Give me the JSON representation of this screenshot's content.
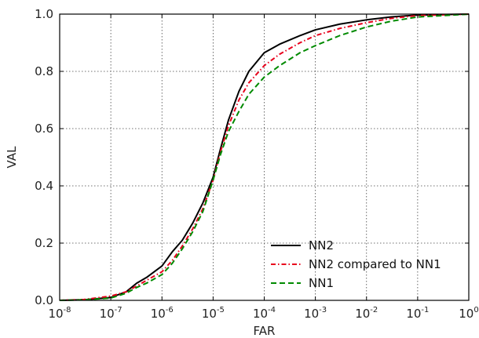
{
  "chart_data": {
    "type": "line",
    "xlabel": "FAR",
    "ylabel": "VAL",
    "xscale": "log",
    "xlim": [
      1e-08,
      1
    ],
    "ylim": [
      0,
      1.0
    ],
    "grid": true,
    "legend_position": "bottom-right",
    "x_ticks": [
      {
        "base": "10",
        "exp": "-8",
        "value": 1e-08
      },
      {
        "base": "10",
        "exp": "-7",
        "value": 1e-07
      },
      {
        "base": "10",
        "exp": "-6",
        "value": 1e-06
      },
      {
        "base": "10",
        "exp": "-5",
        "value": 1e-05
      },
      {
        "base": "10",
        "exp": "-4",
        "value": 0.0001
      },
      {
        "base": "10",
        "exp": "-3",
        "value": 0.001
      },
      {
        "base": "10",
        "exp": "-2",
        "value": 0.01
      },
      {
        "base": "10",
        "exp": "-1",
        "value": 0.1
      },
      {
        "base": "10",
        "exp": "0",
        "value": 1
      }
    ],
    "y_ticks": [
      {
        "label": "0.0",
        "value": 0.0
      },
      {
        "label": "0.2",
        "value": 0.2
      },
      {
        "label": "0.4",
        "value": 0.4
      },
      {
        "label": "0.6",
        "value": 0.6
      },
      {
        "label": "0.8",
        "value": 0.8
      },
      {
        "label": "1.0",
        "value": 1.0
      }
    ],
    "series": [
      {
        "name": "NN2",
        "color": "#000000",
        "style": "solid",
        "points": [
          [
            1e-08,
            0.0
          ],
          [
            3e-08,
            0.002
          ],
          [
            1e-07,
            0.01
          ],
          [
            2e-07,
            0.03
          ],
          [
            3.2e-07,
            0.06
          ],
          [
            5e-07,
            0.08
          ],
          [
            1e-06,
            0.12
          ],
          [
            1.6e-06,
            0.17
          ],
          [
            2.5e-06,
            0.21
          ],
          [
            4e-06,
            0.27
          ],
          [
            6.3e-06,
            0.34
          ],
          [
            1e-05,
            0.43
          ],
          [
            1.4e-05,
            0.53
          ],
          [
            2e-05,
            0.63
          ],
          [
            3.2e-05,
            0.73
          ],
          [
            5e-05,
            0.8
          ],
          [
            0.0001,
            0.865
          ],
          [
            0.0002,
            0.895
          ],
          [
            0.0005,
            0.925
          ],
          [
            0.001,
            0.945
          ],
          [
            0.003,
            0.965
          ],
          [
            0.01,
            0.98
          ],
          [
            0.03,
            0.99
          ],
          [
            0.1,
            0.997
          ],
          [
            1,
            1.0
          ]
        ]
      },
      {
        "name": "NN2 compared to NN1",
        "color": "#e8001c",
        "style": "dashdot",
        "points": [
          [
            1e-08,
            0.0
          ],
          [
            3e-08,
            0.003
          ],
          [
            1e-07,
            0.015
          ],
          [
            2e-07,
            0.03
          ],
          [
            3.2e-07,
            0.05
          ],
          [
            5e-07,
            0.07
          ],
          [
            1e-06,
            0.1
          ],
          [
            1.6e-06,
            0.14
          ],
          [
            2.5e-06,
            0.19
          ],
          [
            4e-06,
            0.25
          ],
          [
            6.3e-06,
            0.32
          ],
          [
            1e-05,
            0.42
          ],
          [
            1.4e-05,
            0.52
          ],
          [
            2e-05,
            0.61
          ],
          [
            3.2e-05,
            0.7
          ],
          [
            5e-05,
            0.76
          ],
          [
            0.0001,
            0.82
          ],
          [
            0.0002,
            0.86
          ],
          [
            0.0005,
            0.9
          ],
          [
            0.001,
            0.925
          ],
          [
            0.003,
            0.95
          ],
          [
            0.01,
            0.97
          ],
          [
            0.03,
            0.985
          ],
          [
            0.1,
            0.995
          ],
          [
            1,
            1.0
          ]
        ]
      },
      {
        "name": "NN1",
        "color": "#008a00",
        "style": "dashed",
        "points": [
          [
            1e-08,
            0.0
          ],
          [
            3e-08,
            0.002
          ],
          [
            1e-07,
            0.008
          ],
          [
            2e-07,
            0.025
          ],
          [
            3.2e-07,
            0.045
          ],
          [
            5e-07,
            0.06
          ],
          [
            1e-06,
            0.09
          ],
          [
            1.6e-06,
            0.13
          ],
          [
            2.5e-06,
            0.18
          ],
          [
            4e-06,
            0.24
          ],
          [
            6.3e-06,
            0.31
          ],
          [
            1e-05,
            0.42
          ],
          [
            1.4e-05,
            0.51
          ],
          [
            2e-05,
            0.59
          ],
          [
            3.2e-05,
            0.66
          ],
          [
            5e-05,
            0.72
          ],
          [
            0.0001,
            0.78
          ],
          [
            0.0002,
            0.82
          ],
          [
            0.0005,
            0.865
          ],
          [
            0.001,
            0.89
          ],
          [
            0.003,
            0.925
          ],
          [
            0.01,
            0.955
          ],
          [
            0.03,
            0.975
          ],
          [
            0.1,
            0.99
          ],
          [
            1,
            1.0
          ]
        ]
      }
    ]
  }
}
